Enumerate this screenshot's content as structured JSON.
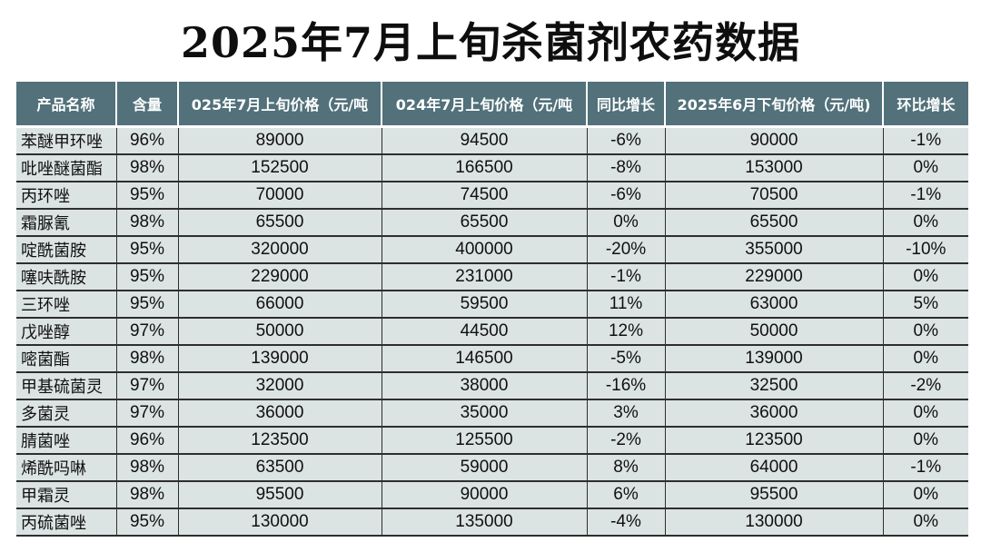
{
  "title": "2025年7月上旬杀菌剂农药数据",
  "table": {
    "headers": [
      "产品名称",
      "含量",
      "025年7月上旬价格（元/吨",
      "024年7月上旬价格（元/吨",
      "同比增长",
      "2025年6月下旬价格（元/吨)",
      "环比增长"
    ],
    "rows": [
      [
        "苯醚甲环唑",
        "96%",
        "89000",
        "94500",
        "-6%",
        "90000",
        "-1%"
      ],
      [
        "吡唑醚菌酯",
        "98%",
        "152500",
        "166500",
        "-8%",
        "153000",
        "0%"
      ],
      [
        "丙环唑",
        "95%",
        "70000",
        "74500",
        "-6%",
        "70500",
        "-1%"
      ],
      [
        "霜脲氰",
        "98%",
        "65500",
        "65500",
        "0%",
        "65500",
        "0%"
      ],
      [
        "啶酰菌胺",
        "95%",
        "320000",
        "400000",
        "-20%",
        "355000",
        "-10%"
      ],
      [
        "噻呋酰胺",
        "95%",
        "229000",
        "231000",
        "-1%",
        "229000",
        "0%"
      ],
      [
        "三环唑",
        "95%",
        "66000",
        "59500",
        "11%",
        "63000",
        "5%"
      ],
      [
        "戊唑醇",
        "97%",
        "50000",
        "44500",
        "12%",
        "50000",
        "0%"
      ],
      [
        "嘧菌酯",
        "98%",
        "139000",
        "146500",
        "-5%",
        "139000",
        "0%"
      ],
      [
        "甲基硫菌灵",
        "97%",
        "32000",
        "38000",
        "-16%",
        "32500",
        "-2%"
      ],
      [
        "多菌灵",
        "97%",
        "36000",
        "35000",
        "3%",
        "36000",
        "0%"
      ],
      [
        "腈菌唑",
        "96%",
        "123500",
        "125500",
        "-2%",
        "123500",
        "0%"
      ],
      [
        "烯酰吗啉",
        "98%",
        "63500",
        "59000",
        "8%",
        "64000",
        "-1%"
      ],
      [
        "甲霜灵",
        "98%",
        "95500",
        "90000",
        "6%",
        "95500",
        "0%"
      ],
      [
        "丙硫菌唑",
        "95%",
        "130000",
        "135000",
        "-4%",
        "130000",
        "0%"
      ]
    ]
  },
  "colors": {
    "header_bg": "#52717a",
    "header_text": "#ffffff",
    "cell_bg": "#dce3e3",
    "grid_line": "#2e2e2e"
  }
}
